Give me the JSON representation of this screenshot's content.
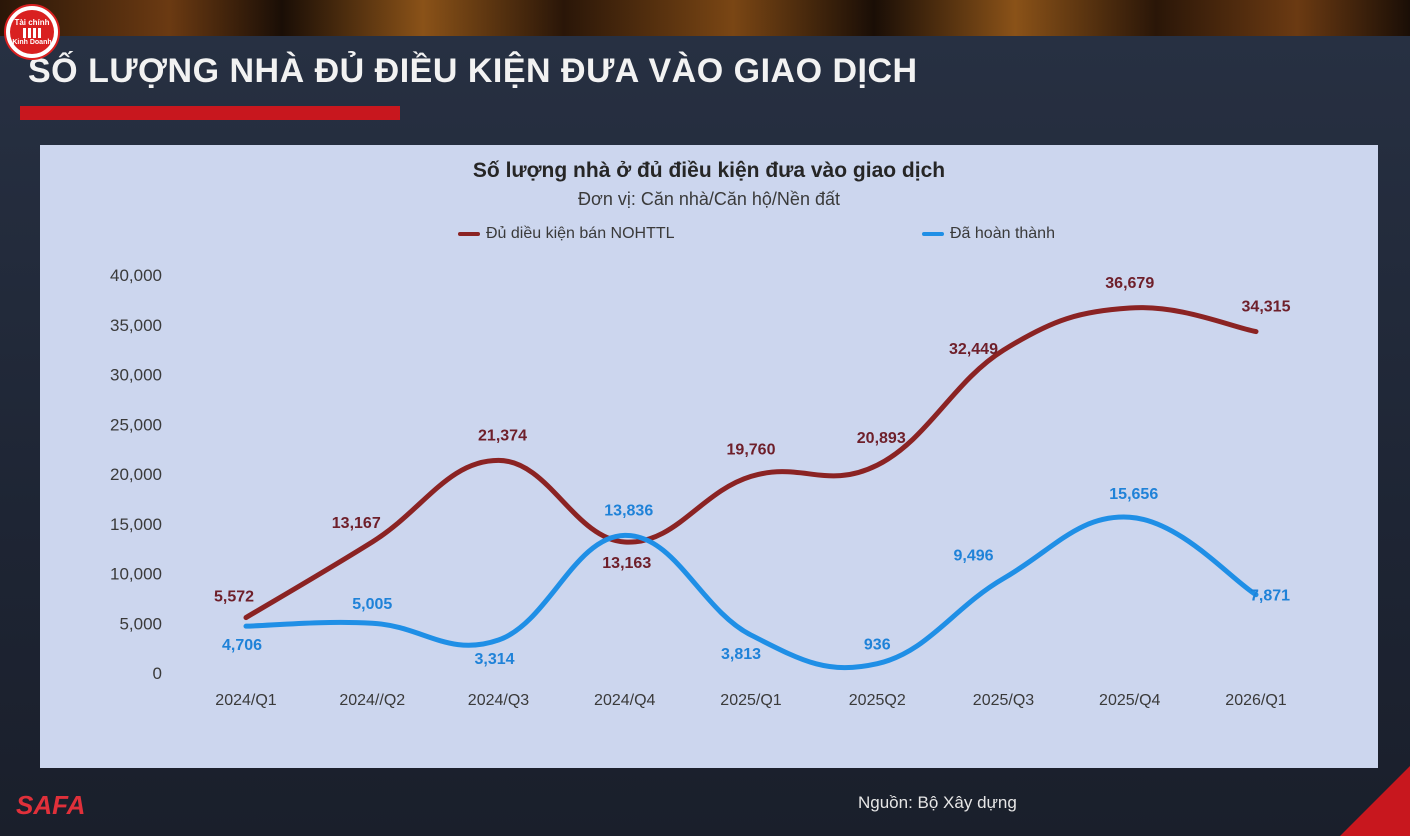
{
  "logo": {
    "line1": "Tài chính",
    "line2": "Kinh Doanh"
  },
  "slide_title": "SỐ LƯỢNG NHÀ ĐỦ ĐIỀU KIỆN ĐƯA VÀO GIAO DỊCH",
  "footer": {
    "brand": "SAFA",
    "source": "Nguồn: Bộ Xây dựng"
  },
  "colors": {
    "series1": "#8b2323",
    "series2": "#1f8fe6",
    "accent": "#c8171e"
  },
  "chart_data": {
    "type": "line",
    "title": "Số lượng nhà ở đủ điều kiện đưa vào giao dịch",
    "subtitle": "Đơn vị: Căn nhà/Căn hộ/Nền đất",
    "categories": [
      "2024/Q1",
      "2024//Q2",
      "2024/Q3",
      "2024/Q4",
      "2025/Q1",
      "2025Q2",
      "2025/Q3",
      "2025/Q4",
      "2026/Q1"
    ],
    "series": [
      {
        "name": "Đủ diều kiện bán NOHTTL",
        "values": [
          5572,
          13167,
          21374,
          13163,
          19760,
          20893,
          32449,
          36679,
          34315
        ],
        "labels": [
          "5,572",
          "13,167",
          "21,374",
          "13,163",
          "19,760",
          "20,893",
          "32,449",
          "36,679",
          "34,315"
        ]
      },
      {
        "name": "Đã hoàn thành",
        "values": [
          4706,
          5005,
          3314,
          13836,
          3813,
          936,
          9496,
          15656,
          7871
        ],
        "labels": [
          "4,706",
          "5,005",
          "3,314",
          "13,836",
          "3,813",
          "936",
          "9,496",
          "15,656",
          "7,871"
        ]
      }
    ],
    "yticks": [
      0,
      5000,
      10000,
      15000,
      20000,
      25000,
      30000,
      35000,
      40000
    ],
    "ytick_labels": [
      "0",
      "5,000",
      "10,000",
      "15,000",
      "20,000",
      "25,000",
      "30,000",
      "35,000",
      "40,000"
    ],
    "ylim": [
      0,
      40000
    ],
    "grid": false,
    "legend": "top"
  }
}
